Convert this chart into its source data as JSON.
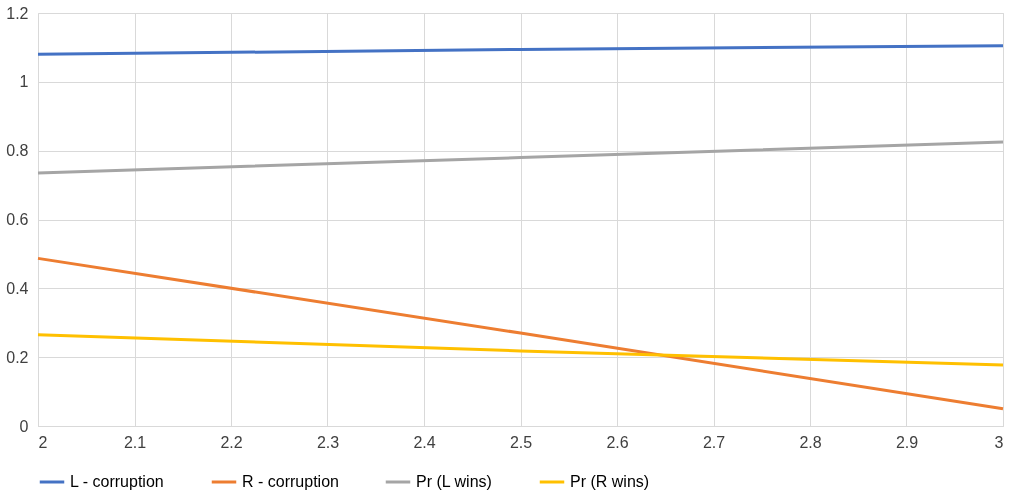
{
  "chart_data": {
    "type": "line",
    "x": [
      2,
      2.5,
      3
    ],
    "series": [
      {
        "name": "L - corruption",
        "color": "#4472c4",
        "values": [
          1.08,
          1.094,
          1.105
        ]
      },
      {
        "name": "R - corruption",
        "color": "#ed7d31",
        "values": [
          0.487,
          0.27,
          0.05
        ]
      },
      {
        "name": "Pr (L wins)",
        "color": "#a5a5a5",
        "values": [
          0.735,
          0.78,
          0.825
        ]
      },
      {
        "name": "Pr (R wins)",
        "color": "#ffc000",
        "values": [
          0.265,
          0.218,
          0.177
        ]
      }
    ],
    "xlim": [
      2,
      3
    ],
    "xticks": [
      2,
      2.1,
      2.2,
      2.3,
      2.4,
      2.5,
      2.6,
      2.7,
      2.8,
      2.9,
      3
    ],
    "ylim": [
      0,
      1.2
    ],
    "yticks": [
      0,
      0.2,
      0.4,
      0.6,
      0.8,
      1,
      1.2
    ],
    "grid": true,
    "legend": "bottom",
    "marker": "none",
    "line_style": "solid"
  }
}
